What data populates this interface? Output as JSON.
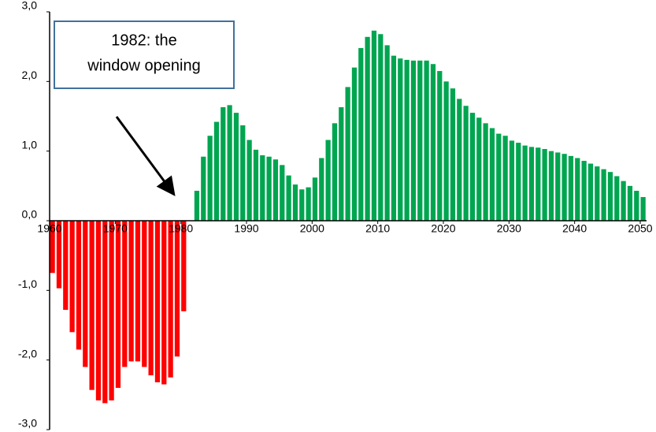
{
  "chart_data": {
    "type": "bar",
    "x": [
      1960,
      1961,
      1962,
      1963,
      1964,
      1965,
      1966,
      1967,
      1968,
      1969,
      1970,
      1971,
      1972,
      1973,
      1974,
      1975,
      1976,
      1977,
      1978,
      1979,
      1980,
      1981,
      1982,
      1983,
      1984,
      1985,
      1986,
      1987,
      1988,
      1989,
      1990,
      1991,
      1992,
      1993,
      1994,
      1995,
      1996,
      1997,
      1998,
      1999,
      2000,
      2001,
      2002,
      2003,
      2004,
      2005,
      2006,
      2007,
      2008,
      2009,
      2010,
      2011,
      2012,
      2013,
      2014,
      2015,
      2016,
      2017,
      2018,
      2019,
      2020,
      2021,
      2022,
      2023,
      2024,
      2025,
      2026,
      2027,
      2028,
      2029,
      2030,
      2031,
      2032,
      2033,
      2034,
      2035,
      2036,
      2037,
      2038,
      2039,
      2040,
      2041,
      2042,
      2043,
      2044,
      2045,
      2046,
      2047,
      2048,
      2049,
      2050
    ],
    "values": [
      -0.75,
      -0.97,
      -1.28,
      -1.6,
      -1.85,
      -2.1,
      -2.43,
      -2.58,
      -2.62,
      -2.58,
      -2.4,
      -2.1,
      -2.02,
      -2.02,
      -2.1,
      -2.22,
      -2.32,
      -2.35,
      -2.25,
      -1.95,
      -1.3,
      0,
      0.43,
      0.92,
      1.22,
      1.42,
      1.63,
      1.66,
      1.55,
      1.37,
      1.16,
      1.02,
      0.94,
      0.92,
      0.88,
      0.8,
      0.65,
      0.52,
      0.45,
      0.48,
      0.62,
      0.9,
      1.16,
      1.4,
      1.63,
      1.92,
      2.2,
      2.48,
      2.64,
      2.73,
      2.68,
      2.52,
      2.37,
      2.33,
      2.31,
      2.3,
      2.3,
      2.3,
      2.25,
      2.15,
      2.0,
      1.9,
      1.75,
      1.65,
      1.55,
      1.48,
      1.4,
      1.33,
      1.25,
      1.22,
      1.15,
      1.12,
      1.08,
      1.06,
      1.05,
      1.03,
      1.0,
      0.98,
      0.96,
      0.93,
      0.9,
      0.86,
      0.82,
      0.78,
      0.74,
      0.7,
      0.64,
      0.57,
      0.5,
      0.43,
      0.34
    ],
    "positive_color": "#00a550",
    "negative_color": "#ff0000",
    "xlim": [
      1960,
      2050
    ],
    "xticks": [
      1960,
      1970,
      1980,
      1990,
      2000,
      2010,
      2020,
      2030,
      2040,
      2050
    ],
    "ylim": [
      -3,
      3
    ],
    "yticks": [
      {
        "value": -3,
        "label": "-3,0"
      },
      {
        "value": -2,
        "label": "-2,0"
      },
      {
        "value": -1,
        "label": "-1,0"
      },
      {
        "value": 0,
        "label": "0,0"
      },
      {
        "value": 1,
        "label": "1,0"
      },
      {
        "value": 2,
        "label": "2,0"
      },
      {
        "value": 3,
        "label": "3,0"
      }
    ],
    "annotation": {
      "lines": [
        "1982: the",
        "window opening"
      ]
    }
  }
}
